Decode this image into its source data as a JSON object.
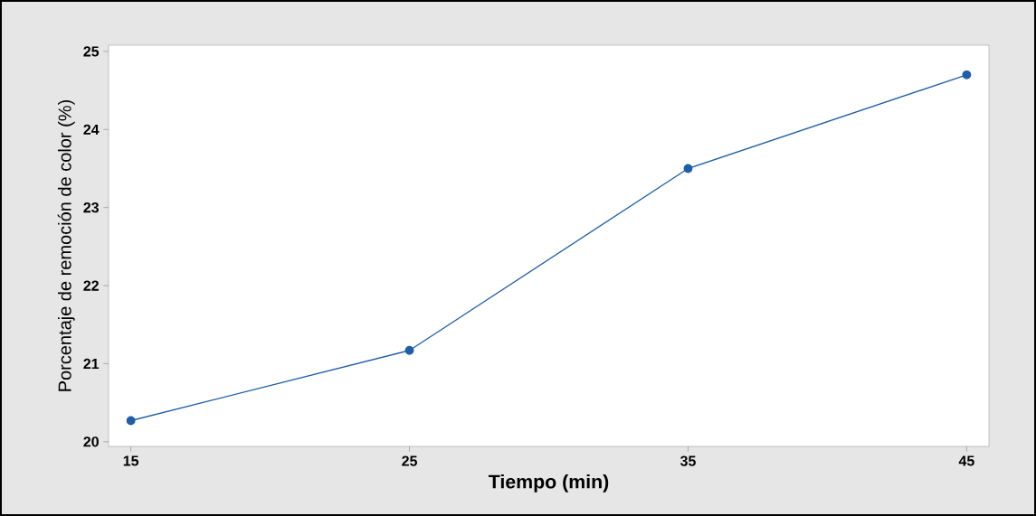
{
  "chart_data": {
    "type": "line",
    "xlabel": "Tiempo (min)",
    "ylabel": "Porcentaje de remoción de color (%)",
    "x": [
      15,
      25,
      35,
      45
    ],
    "series": [
      {
        "color": "#1f5fa8",
        "values": [
          20.27,
          21.17,
          23.5,
          24.7
        ]
      }
    ],
    "xlim": [
      14.2,
      45.8
    ],
    "ylim": [
      19.94,
      25.08
    ],
    "xticks": [
      15,
      25,
      35,
      45
    ],
    "yticks": [
      20,
      21,
      22,
      23,
      24,
      25
    ],
    "marker": "circle",
    "line_style": "solid"
  }
}
